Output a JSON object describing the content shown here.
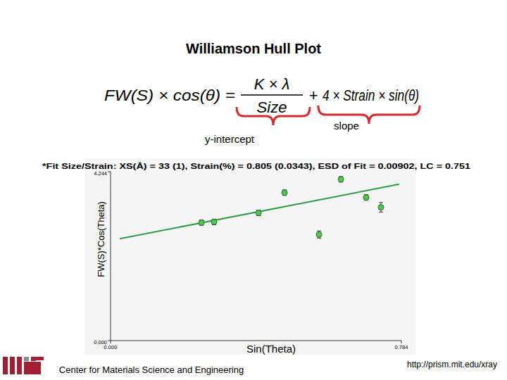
{
  "chart_data": {
    "type": "scatter",
    "title": "Williamson Hull Plot",
    "subtitle": "*Fit Size/Strain: XS(Å) = 33 (1), Strain(%) = 0.805 (0.0343), ESD of Fit = 0.00902, LC = 0.751",
    "x_label": "Sin(Theta)",
    "y_label": "FW(S)*Cos(Theta)",
    "xlim": [
      0,
      0.784
    ],
    "ylim": [
      0,
      4.244
    ],
    "xticks": [
      {
        "value": 0,
        "label": "0.000"
      },
      0.784
    ],
    "yticks": [
      {
        "value": 0,
        "label": "0.000"
      },
      4.244
    ],
    "grid": false,
    "series": [
      {
        "type": "scatter",
        "color": "#4fc74f",
        "marker": "circle",
        "x": [
          0.245,
          0.279,
          0.399,
          0.469,
          0.562,
          0.621,
          0.689,
          0.729
        ],
        "values": [
          2.964,
          2.982,
          3.21,
          3.718,
          2.666,
          4.052,
          3.596,
          3.35
        ],
        "errors": [
          0.07,
          0.07,
          0.07,
          0.07,
          0.09,
          0.07,
          0.07,
          0.12
        ]
      },
      {
        "type": "line",
        "color": "#2e9b4a",
        "line_style": "solid",
        "x": [
          0.025,
          0.778
        ],
        "values": [
          2.56,
          3.929
        ]
      }
    ]
  },
  "equation": {
    "lhs": "FW(S) × cos(θ) =",
    "numerator": "K × λ",
    "denominator": "Size",
    "plus": "+",
    "rhs": "4 × Strain × sin(θ)",
    "intercept_label": "y-intercept",
    "slope_label": "slope"
  },
  "footer": {
    "institution": "Center for Materials Science and Engineering",
    "url": "http://prism.mit.edu/xray"
  }
}
